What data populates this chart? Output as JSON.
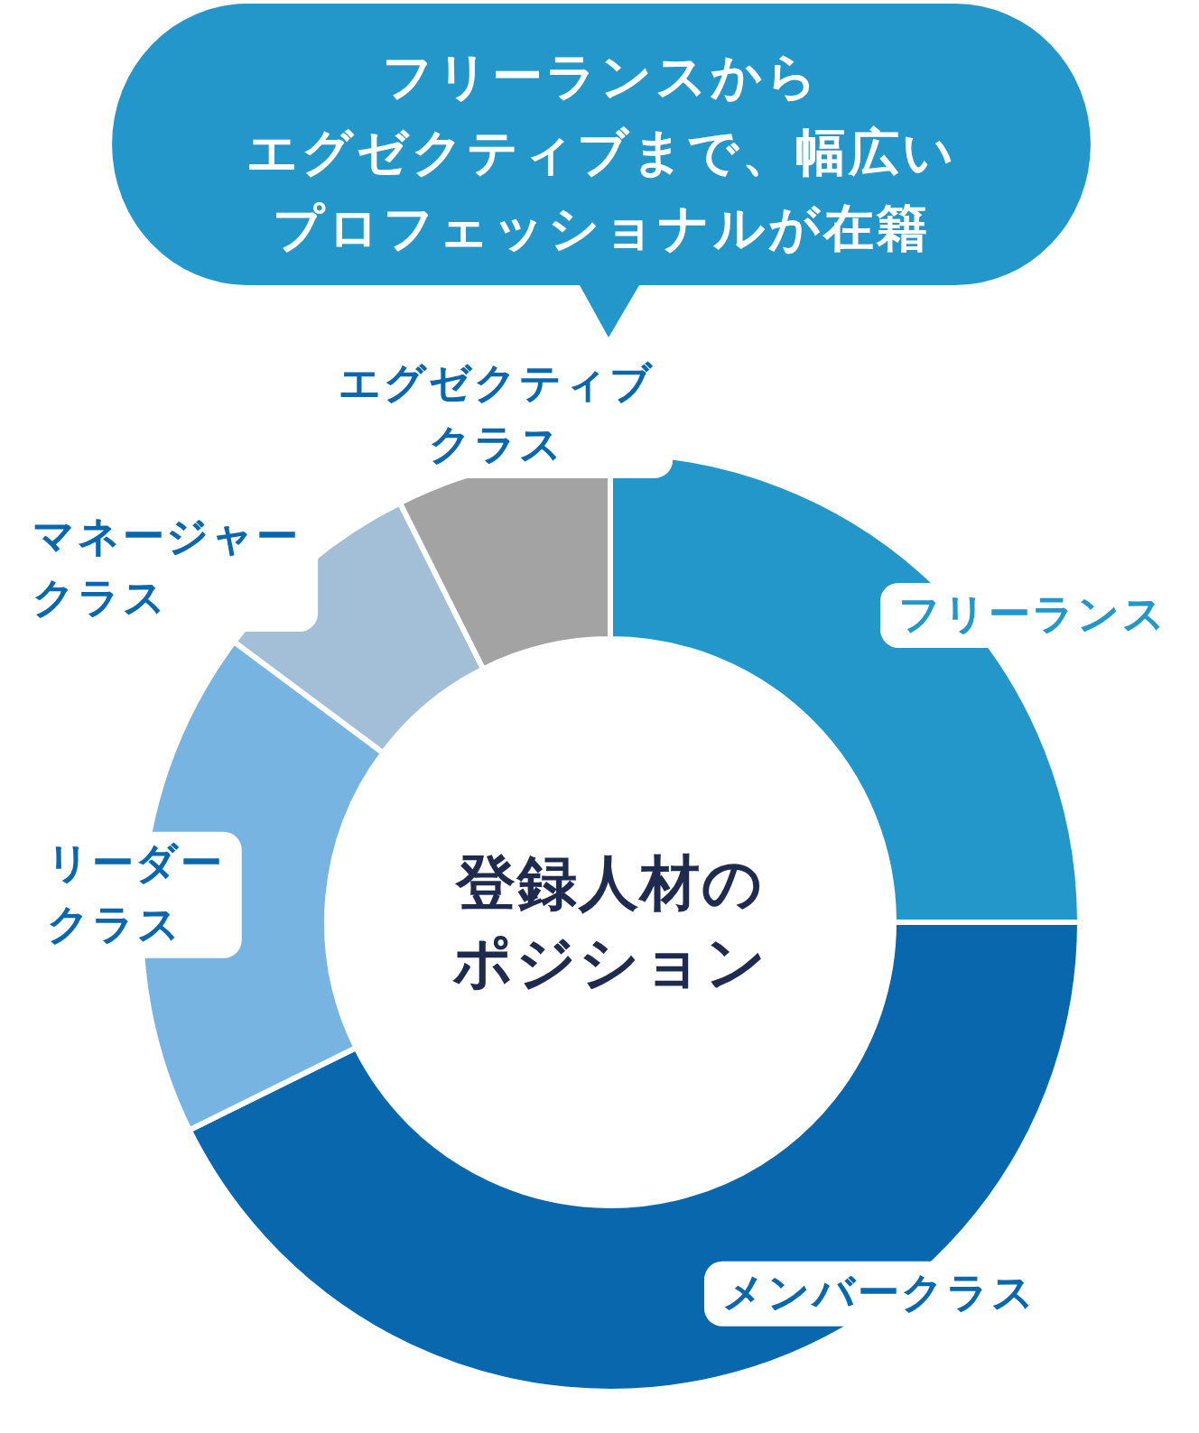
{
  "chart_data": {
    "type": "donut",
    "title": "フリーランスからエグゼクティブまで、幅広いプロフェッショナルが在籍",
    "subtitle": "登録人材のポジション",
    "categories": [
      "フリーランス",
      "メンバークラス",
      "リーダークラス",
      "マネージャークラス",
      "エグゼクティブクラス"
    ],
    "values": [
      25,
      42.7,
      17.5,
      7.4,
      7.4
    ],
    "colors": [
      "#2397c9",
      "#0968ad",
      "#78b4e2",
      "#a3bfd7",
      "#a3a3a3"
    ]
  }
}
